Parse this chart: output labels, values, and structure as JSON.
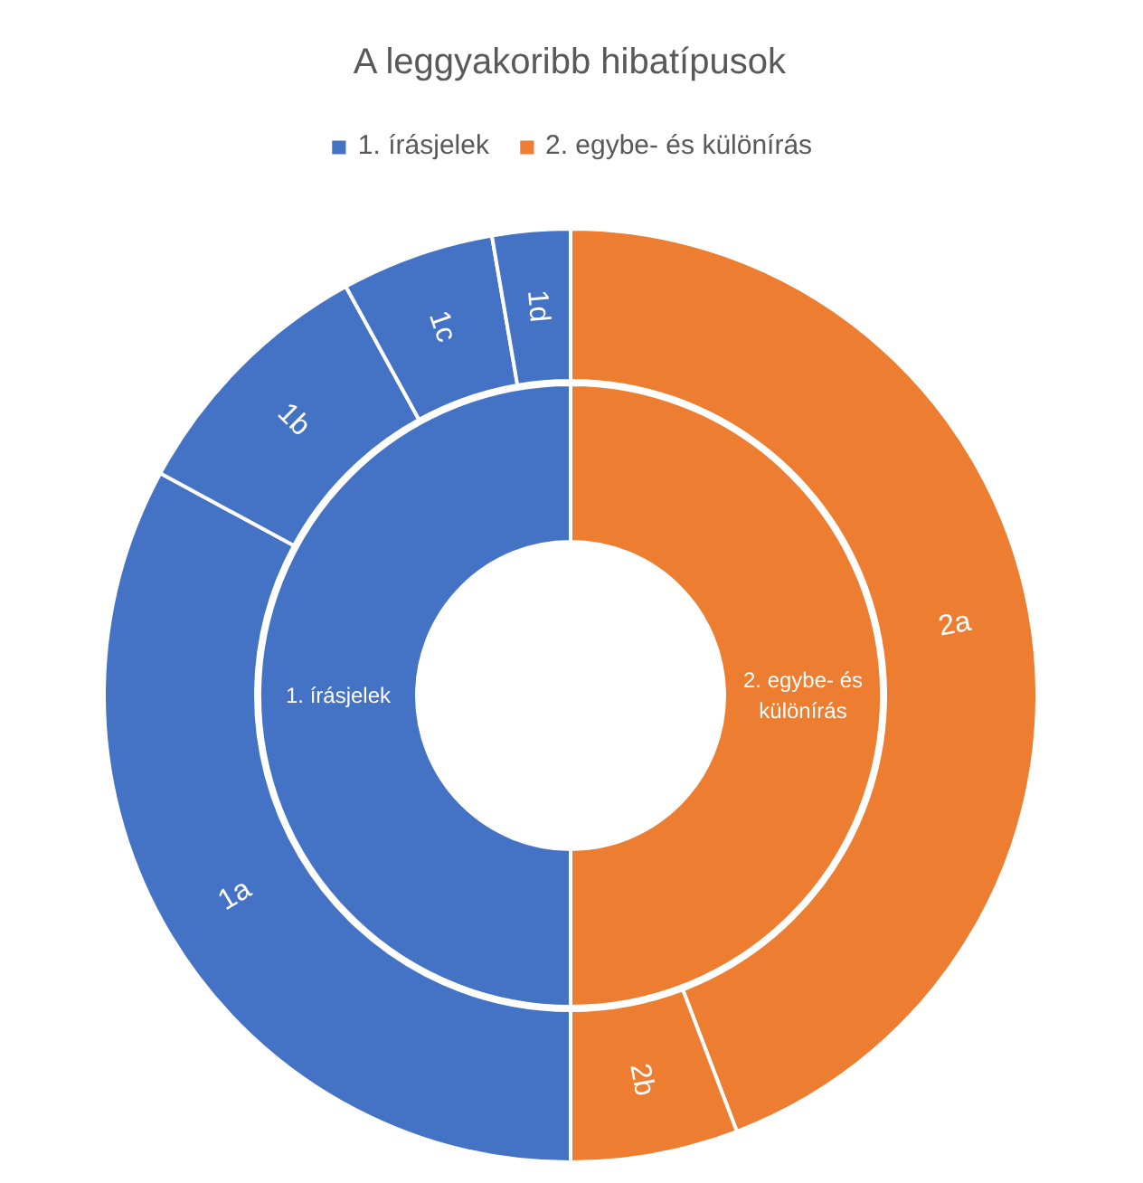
{
  "chart_data": [
    {
      "type": "donut",
      "title": "A leggyakoribb hibatípusok",
      "legend": "top",
      "categories": [
        "1. írásjelek",
        "2. egybe- és különírás"
      ],
      "values": [
        50,
        50
      ],
      "colors": [
        "#4472c4",
        "#ed7d31"
      ]
    },
    {
      "type": "donut",
      "categories": [
        "1a",
        "1b",
        "1c",
        "1d",
        "2a",
        "2b"
      ],
      "values": [
        32.9,
        9.1,
        5.3,
        2.7,
        44.2,
        5.8
      ],
      "colors": [
        "#4472c4",
        "#4472c4",
        "#4472c4",
        "#4472c4",
        "#ed7d31",
        "#ed7d31"
      ]
    }
  ]
}
